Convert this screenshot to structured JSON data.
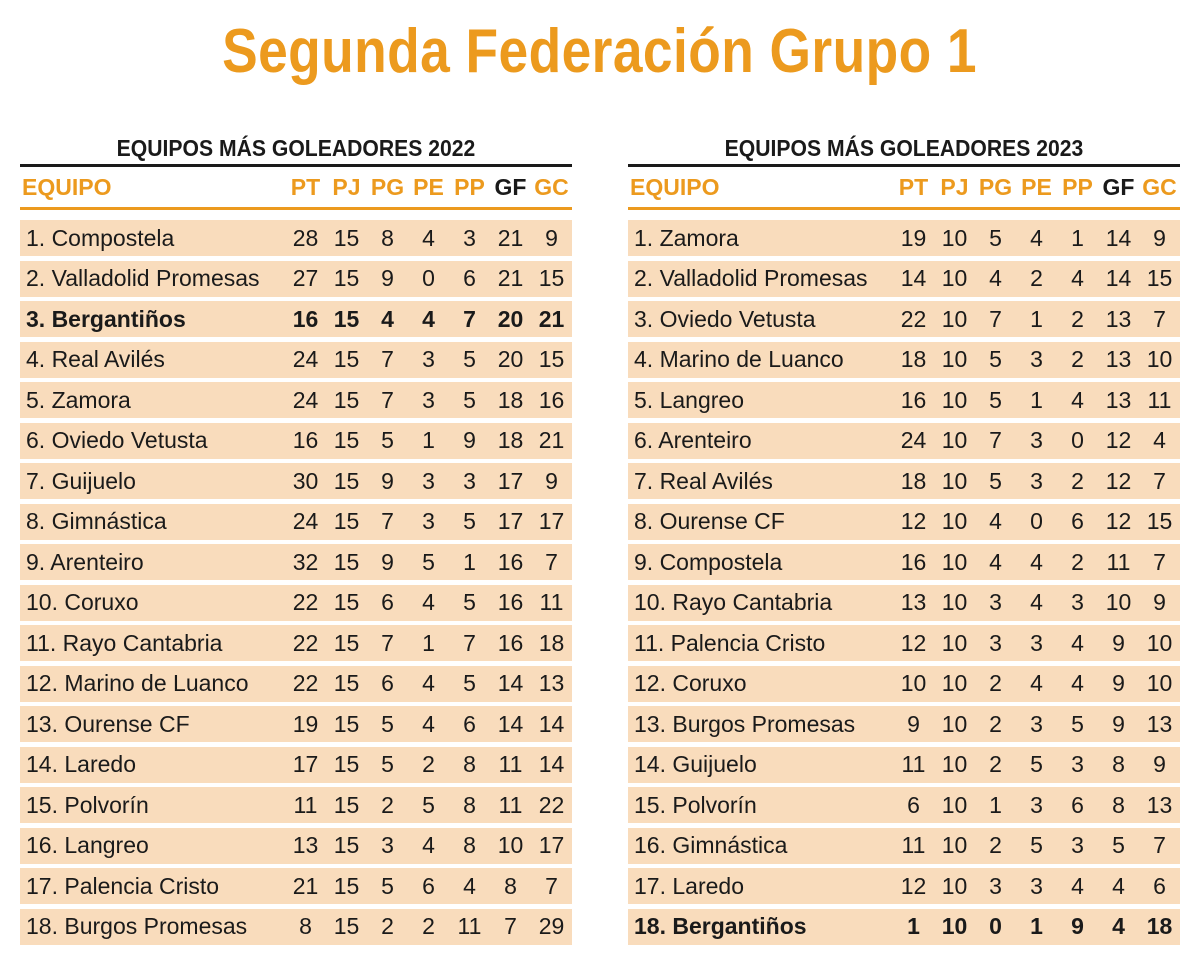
{
  "title": "Segunda Federación Grupo 1",
  "headers": {
    "team": "EQUIPO",
    "pt": "PT",
    "pj": "PJ",
    "pg": "PG",
    "pe": "PE",
    "pp": "PP",
    "gf": "GF",
    "gc": "GC"
  },
  "colors": {
    "accent": "#ec9a1e",
    "row_bg": "#f9dcbc",
    "text": "#1a1a1a"
  },
  "left": {
    "title": "EQUIPOS MÁS GOLEADORES 2022",
    "rows": [
      {
        "team": "1. Compostela",
        "pt": "28",
        "pj": "15",
        "pg": "8",
        "pe": "4",
        "pp": "3",
        "gf": "21",
        "gc": "9"
      },
      {
        "team": "2. Valladolid Promesas",
        "pt": "27",
        "pj": "15",
        "pg": "9",
        "pe": "0",
        "pp": "6",
        "gf": "21",
        "gc": "15"
      },
      {
        "team": "3. Bergantiños",
        "pt": "16",
        "pj": "15",
        "pg": "4",
        "pe": "4",
        "pp": "7",
        "gf": "20",
        "gc": "21",
        "bold": true
      },
      {
        "team": "4. Real Avilés",
        "pt": "24",
        "pj": "15",
        "pg": "7",
        "pe": "3",
        "pp": "5",
        "gf": "20",
        "gc": "15"
      },
      {
        "team": "5. Zamora",
        "pt": "24",
        "pj": "15",
        "pg": "7",
        "pe": "3",
        "pp": "5",
        "gf": "18",
        "gc": "16"
      },
      {
        "team": "6. Oviedo Vetusta",
        "pt": "16",
        "pj": "15",
        "pg": "5",
        "pe": "1",
        "pp": "9",
        "gf": "18",
        "gc": "21"
      },
      {
        "team": "7. Guijuelo",
        "pt": "30",
        "pj": "15",
        "pg": "9",
        "pe": "3",
        "pp": "3",
        "gf": "17",
        "gc": "9"
      },
      {
        "team": "8. Gimnástica",
        "pt": "24",
        "pj": "15",
        "pg": "7",
        "pe": "3",
        "pp": "5",
        "gf": "17",
        "gc": "17"
      },
      {
        "team": "9. Arenteiro",
        "pt": "32",
        "pj": "15",
        "pg": "9",
        "pe": "5",
        "pp": "1",
        "gf": "16",
        "gc": "7"
      },
      {
        "team": "10. Coruxo",
        "pt": "22",
        "pj": "15",
        "pg": "6",
        "pe": "4",
        "pp": "5",
        "gf": "16",
        "gc": "11"
      },
      {
        "team": "11. Rayo Cantabria",
        "pt": "22",
        "pj": "15",
        "pg": "7",
        "pe": "1",
        "pp": "7",
        "gf": "16",
        "gc": "18"
      },
      {
        "team": "12. Marino de Luanco",
        "pt": "22",
        "pj": "15",
        "pg": "6",
        "pe": "4",
        "pp": "5",
        "gf": "14",
        "gc": "13"
      },
      {
        "team": "13. Ourense CF",
        "pt": "19",
        "pj": "15",
        "pg": "5",
        "pe": "4",
        "pp": "6",
        "gf": "14",
        "gc": "14"
      },
      {
        "team": "14. Laredo",
        "pt": "17",
        "pj": "15",
        "pg": "5",
        "pe": "2",
        "pp": "8",
        "gf": "11",
        "gc": "14"
      },
      {
        "team": "15. Polvorín",
        "pt": "11",
        "pj": "15",
        "pg": "2",
        "pe": "5",
        "pp": "8",
        "gf": "11",
        "gc": "22"
      },
      {
        "team": "16. Langreo",
        "pt": "13",
        "pj": "15",
        "pg": "3",
        "pe": "4",
        "pp": "8",
        "gf": "10",
        "gc": "17"
      },
      {
        "team": "17. Palencia Cristo",
        "pt": "21",
        "pj": "15",
        "pg": "5",
        "pe": "6",
        "pp": "4",
        "gf": "8",
        "gc": "7"
      },
      {
        "team": "18. Burgos Promesas",
        "pt": "8",
        "pj": "15",
        "pg": "2",
        "pe": "2",
        "pp": "11",
        "gf": "7",
        "gc": "29"
      }
    ]
  },
  "right": {
    "title": "EQUIPOS MÁS GOLEADORES 2023",
    "rows": [
      {
        "team": "1. Zamora",
        "pt": "19",
        "pj": "10",
        "pg": "5",
        "pe": "4",
        "pp": "1",
        "gf": "14",
        "gc": "9"
      },
      {
        "team": "2. Valladolid Promesas",
        "pt": "14",
        "pj": "10",
        "pg": "4",
        "pe": "2",
        "pp": "4",
        "gf": "14",
        "gc": "15"
      },
      {
        "team": "3. Oviedo Vetusta",
        "pt": "22",
        "pj": "10",
        "pg": "7",
        "pe": "1",
        "pp": "2",
        "gf": "13",
        "gc": "7"
      },
      {
        "team": "4. Marino de Luanco",
        "pt": "18",
        "pj": "10",
        "pg": "5",
        "pe": "3",
        "pp": "2",
        "gf": "13",
        "gc": "10"
      },
      {
        "team": "5. Langreo",
        "pt": "16",
        "pj": "10",
        "pg": "5",
        "pe": "1",
        "pp": "4",
        "gf": "13",
        "gc": "11"
      },
      {
        "team": "6. Arenteiro",
        "pt": "24",
        "pj": "10",
        "pg": "7",
        "pe": "3",
        "pp": "0",
        "gf": "12",
        "gc": "4"
      },
      {
        "team": "7. Real Avilés",
        "pt": "18",
        "pj": "10",
        "pg": "5",
        "pe": "3",
        "pp": "2",
        "gf": "12",
        "gc": "7"
      },
      {
        "team": "8. Ourense CF",
        "pt": "12",
        "pj": "10",
        "pg": "4",
        "pe": "0",
        "pp": "6",
        "gf": "12",
        "gc": "15"
      },
      {
        "team": "9. Compostela",
        "pt": "16",
        "pj": "10",
        "pg": "4",
        "pe": "4",
        "pp": "2",
        "gf": "11",
        "gc": "7"
      },
      {
        "team": "10. Rayo Cantabria",
        "pt": "13",
        "pj": "10",
        "pg": "3",
        "pe": "4",
        "pp": "3",
        "gf": "10",
        "gc": "9"
      },
      {
        "team": "11. Palencia Cristo",
        "pt": "12",
        "pj": "10",
        "pg": "3",
        "pe": "3",
        "pp": "4",
        "gf": "9",
        "gc": "10"
      },
      {
        "team": "12. Coruxo",
        "pt": "10",
        "pj": "10",
        "pg": "2",
        "pe": "4",
        "pp": "4",
        "gf": "9",
        "gc": "10"
      },
      {
        "team": "13. Burgos Promesas",
        "pt": "9",
        "pj": "10",
        "pg": "2",
        "pe": "3",
        "pp": "5",
        "gf": "9",
        "gc": "13"
      },
      {
        "team": "14. Guijuelo",
        "pt": "11",
        "pj": "10",
        "pg": "2",
        "pe": "5",
        "pp": "3",
        "gf": "8",
        "gc": "9"
      },
      {
        "team": "15. Polvorín",
        "pt": "6",
        "pj": "10",
        "pg": "1",
        "pe": "3",
        "pp": "6",
        "gf": "8",
        "gc": "13"
      },
      {
        "team": "16. Gimnástica",
        "pt": "11",
        "pj": "10",
        "pg": "2",
        "pe": "5",
        "pp": "3",
        "gf": "5",
        "gc": "7"
      },
      {
        "team": "17. Laredo",
        "pt": "12",
        "pj": "10",
        "pg": "3",
        "pe": "3",
        "pp": "4",
        "gf": "4",
        "gc": "6"
      },
      {
        "team": "18. Bergantiños",
        "pt": "1",
        "pj": "10",
        "pg": "0",
        "pe": "1",
        "pp": "9",
        "gf": "4",
        "gc": "18",
        "bold": true
      }
    ]
  }
}
